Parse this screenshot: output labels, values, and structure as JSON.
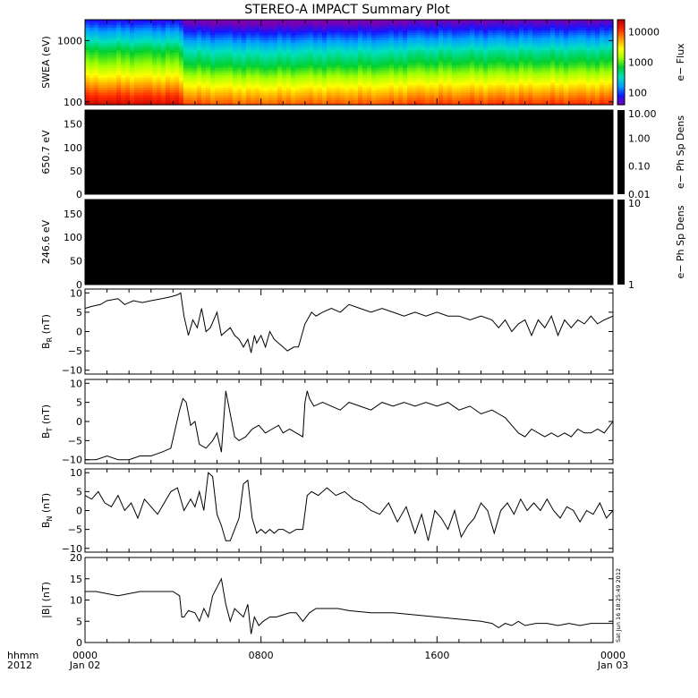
{
  "title": "STEREO-A IMPACT Summary Plot",
  "timestamp_note": "Sat Jun 16 18:25:49 2012",
  "time_axis": {
    "prefix_lines": [
      "hhmm",
      "2012"
    ],
    "ticks": [
      {
        "hour": 0,
        "lines": [
          "0000",
          "Jan 02"
        ]
      },
      {
        "hour": 8,
        "lines": [
          "0800",
          ""
        ]
      },
      {
        "hour": 16,
        "lines": [
          "1600",
          ""
        ]
      },
      {
        "hour": 24,
        "lines": [
          "0000",
          "Jan 03"
        ]
      }
    ],
    "range_hours": [
      0,
      24
    ]
  },
  "colors": {
    "background": "#ffffff",
    "trace": "#000000",
    "empty_panel": "#000000"
  },
  "chart_data": [
    {
      "type": "heatmap",
      "panel": "swea",
      "ylabel": "SWEA (eV)",
      "yscale": "log",
      "ylim": [
        90,
        2200
      ],
      "yticks": [
        100,
        1000
      ],
      "ytick_labels": [
        "100",
        "1000"
      ],
      "colorbar": {
        "label": "e− Flux",
        "scale": "log",
        "range": [
          40,
          25000
        ],
        "ticks": [
          100,
          1000,
          10000
        ],
        "tick_labels": [
          "100",
          "1000",
          "10000"
        ]
      },
      "colormap": [
        "#7a00b0",
        "#1515ff",
        "#00a0ff",
        "#00e0c0",
        "#00d030",
        "#a0ff00",
        "#ffff00",
        "#ff9a00",
        "#ff2a00",
        "#c00000"
      ],
      "flux_profile": {
        "energy_eV": [
          90,
          150,
          250,
          400,
          700,
          1000,
          1500,
          2200
        ],
        "flux": [
          22000,
          9000,
          3500,
          1500,
          700,
          350,
          160,
          70
        ]
      },
      "intensity_factor": {
        "hours": [
          0,
          4.3,
          4.6,
          8,
          10,
          14,
          15,
          18,
          22,
          24
        ],
        "factor": [
          1.0,
          0.95,
          0.5,
          0.42,
          0.45,
          0.48,
          0.55,
          0.56,
          0.58,
          0.6
        ]
      },
      "data_gap_after_hours": 24
    },
    {
      "type": "heatmap",
      "panel": "pad_650",
      "ylabel": "650.7 eV",
      "ylim": [
        0,
        180
      ],
      "yticks": [
        0,
        50,
        100,
        150
      ],
      "ytick_labels": [
        "0",
        "50",
        "100",
        "150"
      ],
      "fill": "no data (black)",
      "colorbar": {
        "label": "e− Ph Sp Dens",
        "scale": "log",
        "range": [
          0.01,
          10
        ],
        "ticks": [
          0.01,
          0.1,
          1,
          10
        ],
        "tick_labels": [
          "0.01",
          "0.10",
          "1.00",
          "10.00"
        ]
      }
    },
    {
      "type": "heatmap",
      "panel": "pad_246",
      "ylabel": "246.6 eV",
      "ylim": [
        0,
        180
      ],
      "yticks": [
        0,
        50,
        100,
        150
      ],
      "ytick_labels": [
        "0",
        "50",
        "100",
        "150"
      ],
      "fill": "no data (black)",
      "colorbar": {
        "label": "e− Ph Sp Dens",
        "scale": "log",
        "range": [
          1,
          10
        ],
        "ticks": [
          1,
          10
        ],
        "tick_labels": [
          "1",
          "10"
        ]
      }
    },
    {
      "type": "line",
      "panel": "br",
      "ylabel": "B_R (nT)",
      "ylim": [
        -11,
        11
      ],
      "yticks": [
        -10,
        -5,
        0,
        5,
        10
      ],
      "ytick_labels": [
        "−10",
        "−5",
        "0",
        "5",
        "10"
      ],
      "series": [
        {
          "x_hours": [
            0,
            0.3,
            0.7,
            1.0,
            1.5,
            1.8,
            2.2,
            2.6,
            3.0,
            3.5,
            3.9,
            4.2,
            4.35,
            4.5,
            4.7,
            4.9,
            5.1,
            5.3,
            5.5,
            5.7,
            6.0,
            6.2,
            6.4,
            6.6,
            6.8,
            7.0,
            7.2,
            7.4,
            7.55,
            7.7,
            7.8,
            7.9,
            8.0,
            8.2,
            8.4,
            8.6,
            8.8,
            9.0,
            9.2,
            9.5,
            9.7,
            10.0,
            10.3,
            10.5,
            10.8,
            11.2,
            11.6,
            12.0,
            12.5,
            13.0,
            13.5,
            14.0,
            14.5,
            15.0,
            15.5,
            16.0,
            16.5,
            17.0,
            17.5,
            18.0,
            18.5,
            18.8,
            19.1,
            19.4,
            19.7,
            20.0,
            20.3,
            20.6,
            20.9,
            21.2,
            21.5,
            21.8,
            22.1,
            22.4,
            22.7,
            23.0,
            23.3,
            23.6,
            24.0
          ],
          "y": [
            6,
            6.5,
            7,
            8,
            8.5,
            7,
            8,
            7.5,
            8,
            8.5,
            9,
            9.5,
            10,
            4,
            -1,
            3,
            1,
            6,
            0,
            1,
            5,
            -1,
            0,
            1,
            -1,
            -2,
            -4,
            -2,
            -5.5,
            -1,
            -3,
            -2,
            -1,
            -4,
            0,
            -2,
            -3,
            -4,
            -5,
            -4,
            -4,
            2,
            5,
            4,
            5,
            6,
            5,
            7,
            6,
            5,
            6,
            5,
            4,
            5,
            4,
            5,
            4,
            4,
            3,
            4,
            3,
            1,
            3,
            0,
            2,
            3,
            -1,
            3,
            1,
            4,
            -1,
            3,
            1,
            3,
            2,
            4,
            2,
            3,
            4
          ]
        }
      ]
    },
    {
      "type": "line",
      "panel": "bt",
      "ylabel": "B_T (nT)",
      "ylim": [
        -11,
        11
      ],
      "yticks": [
        -10,
        -5,
        0,
        5,
        10
      ],
      "ytick_labels": [
        "−10",
        "−5",
        "0",
        "5",
        "10"
      ],
      "series": [
        {
          "x_hours": [
            0,
            0.5,
            1.0,
            1.5,
            2.0,
            2.5,
            3.0,
            3.5,
            3.9,
            4.1,
            4.3,
            4.45,
            4.6,
            4.8,
            5.0,
            5.2,
            5.5,
            5.8,
            6.0,
            6.2,
            6.4,
            6.6,
            6.8,
            7.0,
            7.3,
            7.6,
            7.9,
            8.2,
            8.5,
            8.8,
            9.0,
            9.3,
            9.6,
            9.9,
            10.0,
            10.1,
            10.2,
            10.4,
            10.8,
            11.2,
            11.6,
            12.0,
            12.5,
            13.0,
            13.5,
            14.0,
            14.5,
            15.0,
            15.5,
            16.0,
            16.5,
            17.0,
            17.5,
            18.0,
            18.5,
            18.8,
            19.1,
            19.4,
            19.7,
            20.0,
            20.3,
            20.6,
            20.9,
            21.2,
            21.5,
            21.8,
            22.1,
            22.4,
            22.7,
            23.0,
            23.3,
            23.6,
            24.0
          ],
          "y": [
            -10,
            -10,
            -9,
            -10,
            -10,
            -9,
            -9,
            -8,
            -7,
            -2,
            3,
            6,
            5,
            -1,
            0,
            -6,
            -7,
            -5,
            -3,
            -8,
            8,
            2,
            -4,
            -5,
            -4,
            -2,
            -1,
            -3,
            -2,
            -1,
            -3,
            -2,
            -3,
            -4,
            5,
            8,
            6,
            4,
            5,
            4,
            3,
            5,
            4,
            3,
            5,
            4,
            5,
            4,
            5,
            4,
            5,
            3,
            4,
            2,
            3,
            2,
            1,
            -1,
            -3,
            -4,
            -2,
            -3,
            -4,
            -3,
            -4,
            -3,
            -4,
            -2,
            -3,
            -3,
            -2,
            -3,
            0
          ]
        }
      ]
    },
    {
      "type": "line",
      "panel": "bn",
      "ylabel": "B_N (nT)",
      "ylim": [
        -11,
        11
      ],
      "yticks": [
        -10,
        -5,
        0,
        5,
        10
      ],
      "ytick_labels": [
        "−10",
        "−5",
        "0",
        "5",
        "10"
      ],
      "series": [
        {
          "x_hours": [
            0,
            0.3,
            0.6,
            0.9,
            1.2,
            1.5,
            1.8,
            2.1,
            2.4,
            2.7,
            3.0,
            3.3,
            3.6,
            3.9,
            4.2,
            4.5,
            4.8,
            5.0,
            5.2,
            5.4,
            5.6,
            5.8,
            6.0,
            6.2,
            6.4,
            6.6,
            6.8,
            7.0,
            7.2,
            7.4,
            7.6,
            7.8,
            8.0,
            8.2,
            8.4,
            8.6,
            8.8,
            9.0,
            9.3,
            9.6,
            9.9,
            10.1,
            10.3,
            10.6,
            11.0,
            11.4,
            11.8,
            12.2,
            12.6,
            13.0,
            13.4,
            13.8,
            14.2,
            14.6,
            15.0,
            15.3,
            15.6,
            15.9,
            16.2,
            16.5,
            16.8,
            17.1,
            17.4,
            17.7,
            18.0,
            18.3,
            18.6,
            18.9,
            19.2,
            19.5,
            19.8,
            20.1,
            20.4,
            20.7,
            21.0,
            21.3,
            21.6,
            21.9,
            22.2,
            22.5,
            22.8,
            23.1,
            23.4,
            23.7,
            24.0
          ],
          "y": [
            4,
            3,
            5,
            2,
            1,
            4,
            0,
            2,
            -2,
            3,
            1,
            -1,
            2,
            5,
            6,
            0,
            3,
            1,
            5,
            0,
            10,
            9,
            -1,
            -4,
            -8,
            -8,
            -5,
            -2,
            7,
            8,
            -2,
            -6,
            -5,
            -6,
            -5,
            -6,
            -5,
            -5,
            -6,
            -5,
            -5,
            4,
            5,
            4,
            6,
            4,
            5,
            3,
            2,
            0,
            -1,
            2,
            -3,
            1,
            -6,
            -1,
            -8,
            0,
            -2,
            -5,
            0,
            -7,
            -4,
            -2,
            2,
            0,
            -6,
            0,
            2,
            -1,
            3,
            0,
            2,
            0,
            3,
            0,
            -2,
            1,
            0,
            -3,
            0,
            -1,
            2,
            -2,
            0
          ]
        }
      ]
    },
    {
      "type": "line",
      "panel": "bmag",
      "ylabel": "|B| (nT)",
      "ylim": [
        0,
        20
      ],
      "yticks": [
        0,
        5,
        10,
        15,
        20
      ],
      "ytick_labels": [
        "0",
        "5",
        "10",
        "15",
        "20"
      ],
      "series": [
        {
          "x_hours": [
            0,
            0.5,
            1.0,
            1.5,
            2.0,
            2.5,
            3.0,
            3.5,
            4.0,
            4.3,
            4.4,
            4.5,
            4.7,
            5.0,
            5.2,
            5.4,
            5.6,
            5.8,
            6.0,
            6.2,
            6.4,
            6.6,
            6.8,
            7.0,
            7.2,
            7.4,
            7.55,
            7.7,
            7.9,
            8.1,
            8.4,
            8.7,
            9.0,
            9.3,
            9.6,
            9.9,
            10.2,
            10.5,
            11.0,
            11.5,
            12.0,
            13.0,
            14.0,
            15.0,
            16.0,
            17.0,
            18.0,
            18.5,
            18.8,
            19.1,
            19.4,
            19.7,
            20.0,
            20.5,
            21.0,
            21.5,
            22.0,
            22.5,
            23.0,
            23.5,
            24.0
          ],
          "y": [
            12,
            12,
            11.5,
            11,
            11.5,
            12,
            12,
            12,
            12,
            11,
            6,
            6,
            7.5,
            7,
            5,
            8,
            6,
            11,
            13,
            15,
            9,
            5,
            8,
            7,
            6,
            9,
            2,
            6,
            4,
            5,
            6,
            6,
            6.5,
            7,
            7,
            5,
            7,
            8,
            8,
            8,
            7.5,
            7,
            7,
            6.5,
            6,
            5.5,
            5,
            4.5,
            3.5,
            4.5,
            4,
            5,
            4,
            4.5,
            4.5,
            4,
            4.5,
            4,
            4.5,
            4.5,
            4.5
          ]
        }
      ]
    }
  ]
}
